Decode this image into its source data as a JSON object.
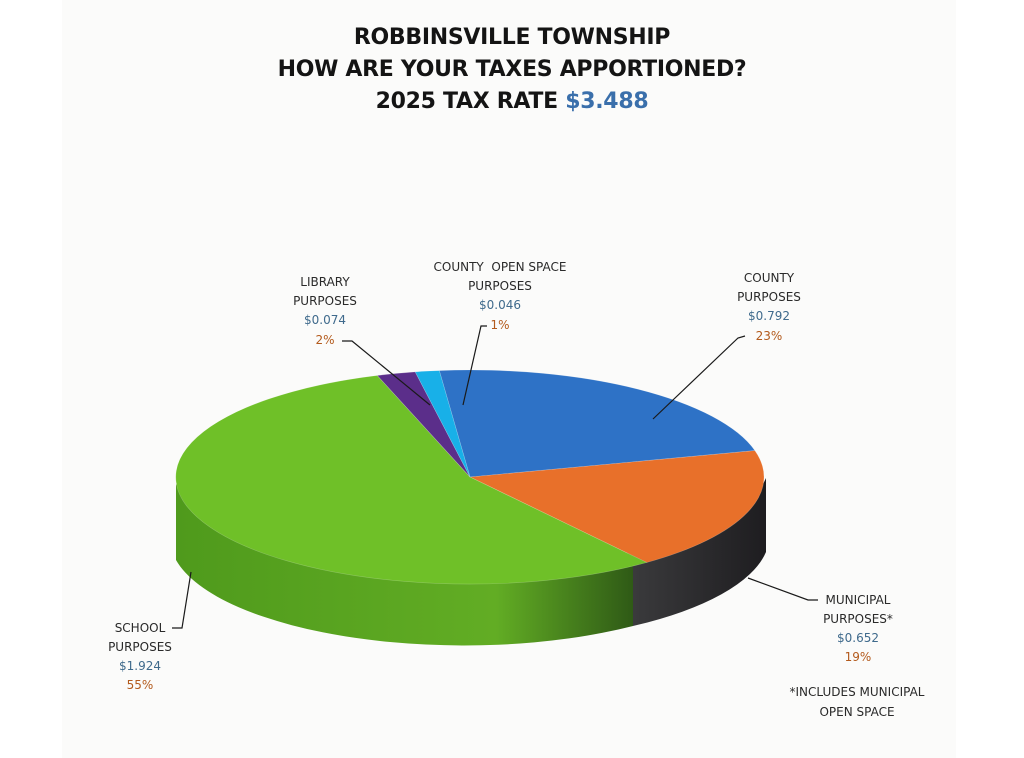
{
  "title": {
    "line1": "ROBBINSVILLE TOWNSHIP",
    "line2": "HOW ARE YOUR TAXES APPORTIONED?",
    "rate_label": "2025 TAX RATE",
    "rate_value": "$3.488"
  },
  "chart_data": {
    "type": "pie",
    "title": "ROBBINSVILLE TOWNSHIP HOW ARE YOUR TAXES APPORTIONED? 2025 TAX RATE $3.488",
    "total": 3.488,
    "slices": [
      {
        "key": "county",
        "label_lines": [
          "COUNTY",
          "PURPOSES"
        ],
        "amount": "$0.792",
        "value": 0.792,
        "percent": "23%",
        "color": "#2e72c6"
      },
      {
        "key": "municipal",
        "label_lines": [
          "MUNICIPAL",
          "PURPOSES*"
        ],
        "amount": "$0.652",
        "value": 0.652,
        "percent": "19%",
        "color": "#e8702a"
      },
      {
        "key": "school",
        "label_lines": [
          "SCHOOL",
          "PURPOSES"
        ],
        "amount": "$1.924",
        "value": 1.924,
        "percent": "55%",
        "color": "#6fc028"
      },
      {
        "key": "library",
        "label_lines": [
          "LIBRARY",
          "PURPOSES"
        ],
        "amount": "$0.074",
        "value": 0.074,
        "percent": "2%",
        "color": "#5b2e8a"
      },
      {
        "key": "county-open-space",
        "label_lines": [
          "COUNTY  OPEN SPACE",
          "PURPOSES"
        ],
        "amount": "$0.046",
        "value": 0.046,
        "percent": "1%",
        "color": "#18b0e8"
      }
    ],
    "style": "3d-perspective"
  },
  "footnote": {
    "line1": "*INCLUDES MUNICIPAL",
    "line2": "OPEN SPACE"
  }
}
